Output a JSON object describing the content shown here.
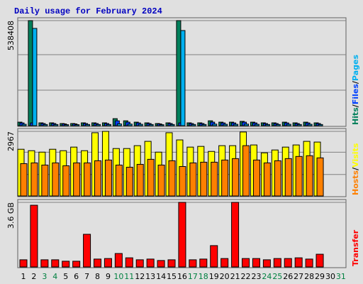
{
  "chart_data": [
    {
      "type": "bar",
      "title": "Daily usage for February 2024",
      "ylim": [
        0,
        538408
      ],
      "yticks": [
        538408
      ],
      "legend_separator": "/",
      "series": [
        {
          "name": "Hits",
          "color": "#00805c",
          "values": [
            18000,
            538408,
            14500,
            14500,
            11000,
            11000,
            14500,
            14500,
            14500,
            36000,
            25000,
            18000,
            14500,
            11000,
            14500,
            538408,
            14500,
            14500,
            25000,
            18000,
            18000,
            22000,
            18000,
            14500,
            14500,
            18000,
            14500,
            18000,
            14500,
            null,
            null
          ]
        },
        {
          "name": "Files",
          "color": "#0040ff",
          "values": [
            14000,
            14000,
            11000,
            11000,
            9000,
            9000,
            11000,
            11000,
            11000,
            25000,
            18000,
            14000,
            11000,
            9000,
            11000,
            14000,
            11000,
            11000,
            18000,
            14000,
            14000,
            18000,
            14000,
            11000,
            11000,
            14000,
            11000,
            14000,
            11000,
            null,
            null
          ]
        },
        {
          "name": "Pages",
          "color": "#00b0f0",
          "values": [
            7000,
            498400,
            6000,
            6000,
            5000,
            5000,
            6000,
            6000,
            6000,
            9000,
            8000,
            7000,
            6000,
            5000,
            6000,
            487500,
            6000,
            6000,
            8000,
            7000,
            7000,
            8000,
            7000,
            6000,
            6000,
            7000,
            6000,
            7000,
            6000,
            null,
            null
          ]
        }
      ]
    },
    {
      "type": "bar",
      "ylim": [
        0,
        2967
      ],
      "yticks": [
        2967
      ],
      "legend_separator": "/",
      "series": [
        {
          "name": "Visits",
          "color": "#ffff00",
          "values": [
            2145,
            2079,
            2013,
            2145,
            2079,
            2244,
            2079,
            2904,
            2967,
            2178,
            2178,
            2310,
            2508,
            2013,
            2904,
            2574,
            2244,
            2277,
            2046,
            2310,
            2310,
            2937,
            2343,
            1980,
            2112,
            2244,
            2343,
            2508,
            2475,
            null,
            null
          ]
        },
        {
          "name": "Hosts",
          "color": "#ff8000",
          "values": [
            1485,
            1518,
            1419,
            1518,
            1386,
            1518,
            1518,
            1617,
            1650,
            1419,
            1320,
            1452,
            1683,
            1419,
            1617,
            1353,
            1518,
            1551,
            1551,
            1650,
            1716,
            2310,
            1650,
            1518,
            1617,
            1716,
            1815,
            1848,
            1749,
            null,
            null
          ]
        }
      ]
    },
    {
      "type": "bar",
      "ylim": [
        0,
        3.6
      ],
      "yticks": [
        {
          "value": 3.6,
          "label": "3.6 GB"
        }
      ],
      "categories": [
        "1",
        "2",
        "3",
        "4",
        "5",
        "6",
        "7",
        "8",
        "9",
        "10",
        "11",
        "12",
        "13",
        "14",
        "15",
        "16",
        "17",
        "18",
        "19",
        "20",
        "21",
        "22",
        "23",
        "24",
        "25",
        "26",
        "27",
        "28",
        "29",
        "30",
        "31"
      ],
      "category_colors": [
        "#000000",
        "#000000",
        "#008040",
        "#008040",
        "#000000",
        "#000000",
        "#000000",
        "#000000",
        "#000000",
        "#008040",
        "#008040",
        "#000000",
        "#000000",
        "#000000",
        "#000000",
        "#000000",
        "#008040",
        "#008040",
        "#000000",
        "#000000",
        "#000000",
        "#000000",
        "#000000",
        "#008040",
        "#008040",
        "#000000",
        "#000000",
        "#000000",
        "#000000",
        "#000000",
        "#008040"
      ],
      "series": [
        {
          "name": "Transfer",
          "color": "#ff0000",
          "values": [
            0.4,
            3.44,
            0.4,
            0.4,
            0.32,
            0.32,
            1.82,
            0.44,
            0.47,
            0.75,
            0.51,
            0.4,
            0.44,
            0.36,
            0.4,
            3.6,
            0.4,
            0.44,
            1.19,
            0.47,
            3.6,
            0.47,
            0.47,
            0.4,
            0.47,
            0.47,
            0.51,
            0.44,
            0.71,
            null,
            null
          ]
        }
      ]
    }
  ]
}
